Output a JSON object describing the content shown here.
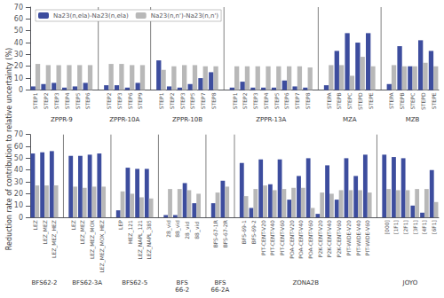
{
  "chart_data": [
    {
      "type": "bar",
      "ylabel": "Reduction rate of contribution to relative uncertainty (%)",
      "legend": "upper left",
      "grid": false,
      "ylim": [
        0,
        70
      ],
      "yticks": [
        0,
        10,
        20,
        30,
        40,
        50,
        60,
        70
      ],
      "groups": [
        {
          "name": "ZPPR-9",
          "categories": [
            "STEP1",
            "STEP2",
            "STEP3",
            "STEP4",
            "STEP5",
            "STEP6"
          ]
        },
        {
          "name": "ZPPR-10A",
          "categories": [
            "STEP2",
            "STEP3",
            "STEP6",
            "STEP9"
          ]
        },
        {
          "name": "ZPPR-10B",
          "categories": [
            "STEP1",
            "STEP2",
            "STEP3",
            "STEP5",
            "STEP7",
            "STEP8"
          ]
        },
        {
          "name": "ZPPR-13A",
          "categories": [
            "STEP1",
            "STEP2",
            "STEP3",
            "STEP4",
            "STEP5",
            "STEP6",
            "STEP7",
            "STEP8"
          ]
        },
        {
          "name": "MZA",
          "categories": [
            "STEPA",
            "STEPB",
            "STEPC",
            "STEPD",
            "STEPE"
          ]
        },
        {
          "name": "MZB",
          "categories": [
            "STEPA",
            "STEPB",
            "STEPC",
            "STEPD",
            "STEPE"
          ]
        }
      ],
      "series": [
        {
          "name": "Na23(n,ela)-Na23(n,ela)",
          "color": "#3d4d9e",
          "values": [
            3,
            5,
            6,
            2,
            3,
            6,
            4,
            4,
            2,
            6,
            25,
            3,
            2,
            5,
            10,
            15,
            2,
            7,
            2,
            2,
            2,
            8,
            3,
            2,
            4,
            33,
            48,
            40,
            48,
            5,
            37,
            20,
            42,
            33
          ]
        },
        {
          "name": "Na23(n,n')-Na23(n,n')",
          "color": "#b8b8b8",
          "values": [
            22,
            21,
            21,
            21,
            21,
            21,
            22,
            22,
            21,
            21,
            17,
            20,
            21,
            21,
            20,
            20,
            20,
            20,
            20,
            20,
            20,
            20,
            20,
            19,
            21,
            21,
            12,
            28,
            20,
            21,
            20,
            20,
            23,
            20
          ]
        }
      ]
    },
    {
      "type": "bar",
      "grid": false,
      "ylim": [
        0,
        70
      ],
      "yticks": [
        0,
        10,
        20,
        30,
        40,
        50,
        60,
        70
      ],
      "groups": [
        {
          "name": "BFS62-2",
          "categories": [
            "LEZ",
            "LEZ_MEZ",
            "LEZ_MEZ_HEZ"
          ]
        },
        {
          "name": "BFS62-3A",
          "categories": [
            "LEZ",
            "LEZ_MEZ",
            "LEZ_MEZ_MOX",
            "LEZ_MEZ_MOX_HEZ"
          ]
        },
        {
          "name": "BFS62-5",
          "categories": [
            "LEP",
            "HEZ_121",
            "LEZ_NAPL_121",
            "LEZ_NAPL_385"
          ]
        },
        {
          "name": "BFS\n66-2",
          "categories": [
            "28_vid",
            "88_vid",
            "28_vid ",
            "88_vid "
          ]
        },
        {
          "name": "BFS\n66-2A",
          "categories": [
            "BFS-67-1R",
            "BFS-67-2R"
          ]
        },
        {
          "name": "ZONA2B",
          "categories": [
            "BFS-69-1",
            "BFS-69-2",
            "PIT-CENT-V20",
            "PIT-CENT-V40",
            "PIT-CENT-V60",
            "POA-CENT-V20",
            "POA-CENT-V40",
            "POA-CENT-V60",
            "P2K-CENT-V20",
            "P2K-CENT-V40",
            "P2K-CENT-V60",
            "PIT-WIDE-V20",
            "PIT-WIDE-V40",
            "PIT-WIDE-V60"
          ]
        },
        {
          "name": "JOYO",
          "categories": [
            "[000]",
            "[1F1]",
            "[2F1]",
            "[3F1]",
            "[4F1]",
            "[6F1]"
          ]
        }
      ],
      "series": [
        {
          "name": "Na23(n,ela)-Na23(n,ela)",
          "color": "#3d4d9e",
          "values": [
            54,
            55,
            56,
            52,
            52,
            53,
            54,
            6,
            42,
            41,
            41,
            2,
            2,
            29,
            12,
            12,
            31,
            46,
            8,
            49,
            28,
            49,
            15,
            35,
            50,
            3,
            44,
            15,
            50,
            35,
            53,
            53,
            51,
            50,
            10,
            4,
            40
          ]
        },
        {
          "name": "Na23(n,n')-Na23(n,n')",
          "color": "#b8b8b8",
          "values": [
            27,
            27,
            27,
            26,
            25,
            26,
            26,
            22,
            20,
            17,
            16,
            24,
            24,
            23,
            20,
            21,
            26,
            18,
            24,
            27,
            23,
            24,
            25,
            25,
            8,
            21,
            20,
            23,
            23,
            23,
            21,
            24,
            23,
            23,
            24,
            24,
            13
          ]
        }
      ]
    }
  ]
}
